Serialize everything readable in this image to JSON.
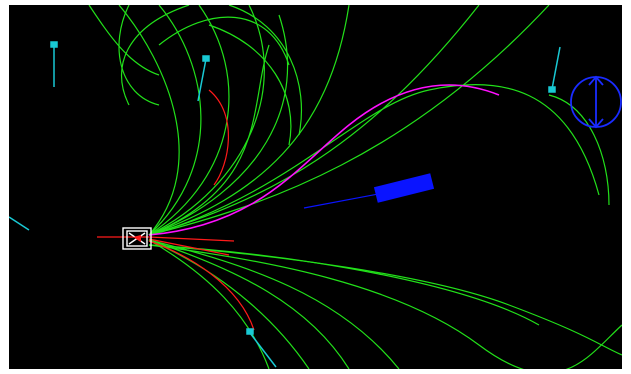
{
  "scene": {
    "title": "",
    "background_color": "#000000",
    "frame_color": "#ffffff",
    "colors": {
      "candidate_path": "#22e01a",
      "selected_path": "#ff10ff",
      "rejected_path": "#ff1a1a",
      "robot_outline": "#ffffff",
      "robot_fill": "#ff1a1a",
      "waypoint_marker": "#19c9d4",
      "obstacle": "#0a14ff",
      "goal_target": "#1a2cff"
    },
    "icons": {
      "robot": "robot-box-icon",
      "waypoint": "waypoint-pin-icon",
      "obstacle": "rectangular-obstacle-icon",
      "goal": "circle-target-icon"
    },
    "markers": {
      "waypoint_count": 5
    }
  }
}
